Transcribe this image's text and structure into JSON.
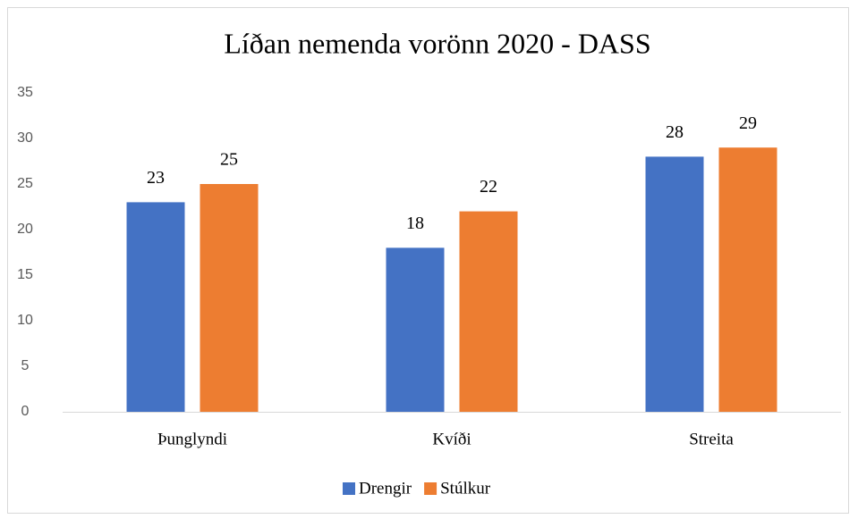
{
  "chart_data": {
    "type": "bar",
    "title": "Líðan nemenda vorönn 2020 - DASS",
    "categories": [
      "Þunglyndi",
      "Kvíði",
      "Streita"
    ],
    "series": [
      {
        "name": "Drengir",
        "color": "#4472c4",
        "values": [
          23,
          18,
          28
        ]
      },
      {
        "name": "Stúlkur",
        "color": "#ed7d31",
        "values": [
          25,
          22,
          29
        ]
      }
    ],
    "ylim": [
      0,
      35
    ],
    "yticks": [
      0,
      5,
      10,
      15,
      20,
      25,
      30,
      35
    ],
    "grid": false,
    "legend": "bottom"
  }
}
